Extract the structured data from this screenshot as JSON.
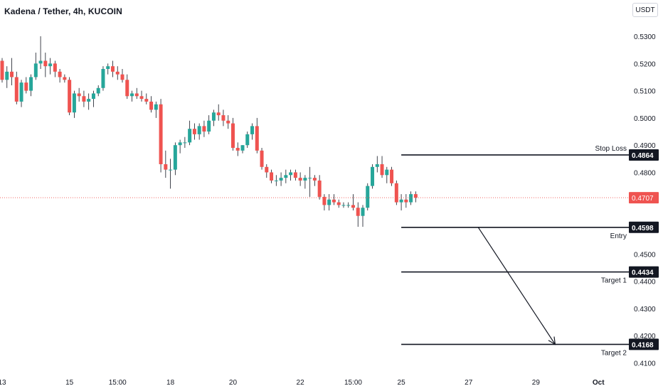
{
  "header": {
    "symbol_title": "Kadena / Tether, 4h, KUCOIN",
    "currency_button": "USDT"
  },
  "colors": {
    "bull": "#26a69a",
    "bear": "#ef5350",
    "price_line": "#ef5350",
    "level_line": "#131722",
    "axis_text": "#131722"
  },
  "chart_data": {
    "type": "candlestick",
    "title": "Kadena / Tether, 4h, KUCOIN",
    "ylim": [
      0.4075,
      0.5355
    ],
    "y_ticks": [
      0.53,
      0.52,
      0.51,
      0.5,
      0.49,
      0.48,
      0.45,
      0.44,
      0.43,
      0.42,
      0.41
    ],
    "y_tick_labels": [
      "0.5300",
      "0.5200",
      "0.5100",
      "0.5000",
      "0.4900",
      "0.4800",
      "0.4500",
      "0.4400",
      "0.4300",
      "0.4200",
      "0.4100"
    ],
    "x_labels": [
      "13",
      "15",
      "15:00",
      "18",
      "20",
      "22",
      "15:00",
      "25",
      "27",
      "29",
      "Oct"
    ],
    "x_label_candle_index": [
      0,
      14,
      24,
      35,
      48,
      62,
      73,
      83,
      97,
      111,
      124
    ],
    "current_price": {
      "value": 0.4707,
      "label": "0.4707"
    },
    "levels": [
      {
        "name": "Stop Loss",
        "value": 0.4864,
        "label": "0.4864",
        "start_candle": 83
      },
      {
        "name": "Entry",
        "value": 0.4598,
        "label": "0.4598",
        "start_candle": 83
      },
      {
        "name": "Target 1",
        "value": 0.4434,
        "label": "0.4434",
        "start_candle": 83
      },
      {
        "name": "Target 2",
        "value": 0.4168,
        "label": "0.4168",
        "start_candle": 83
      }
    ],
    "arrow": {
      "from": {
        "candle": 99,
        "value": 0.4598
      },
      "to": {
        "candle": 115,
        "value": 0.4168
      }
    },
    "candles": [
      [
        0.521,
        0.522,
        0.513,
        0.514
      ],
      [
        0.514,
        0.519,
        0.511,
        0.517
      ],
      [
        0.517,
        0.522,
        0.512,
        0.515
      ],
      [
        0.515,
        0.517,
        0.505,
        0.506
      ],
      [
        0.506,
        0.514,
        0.504,
        0.513
      ],
      [
        0.513,
        0.515,
        0.509,
        0.51
      ],
      [
        0.51,
        0.516,
        0.508,
        0.515
      ],
      [
        0.515,
        0.524,
        0.514,
        0.52
      ],
      [
        0.52,
        0.53,
        0.518,
        0.521
      ],
      [
        0.521,
        0.524,
        0.515,
        0.519
      ],
      [
        0.519,
        0.522,
        0.516,
        0.52
      ],
      [
        0.52,
        0.521,
        0.515,
        0.517
      ],
      [
        0.517,
        0.518,
        0.513,
        0.515
      ],
      [
        0.515,
        0.516,
        0.513,
        0.514
      ],
      [
        0.514,
        0.515,
        0.501,
        0.502
      ],
      [
        0.502,
        0.51,
        0.5,
        0.509
      ],
      [
        0.509,
        0.511,
        0.506,
        0.508
      ],
      [
        0.508,
        0.51,
        0.504,
        0.506
      ],
      [
        0.506,
        0.509,
        0.503,
        0.507
      ],
      [
        0.507,
        0.51,
        0.504,
        0.509
      ],
      [
        0.509,
        0.512,
        0.508,
        0.511
      ],
      [
        0.511,
        0.519,
        0.51,
        0.518
      ],
      [
        0.518,
        0.52,
        0.516,
        0.519
      ],
      [
        0.519,
        0.521,
        0.515,
        0.517
      ],
      [
        0.517,
        0.519,
        0.514,
        0.516
      ],
      [
        0.516,
        0.518,
        0.513,
        0.514
      ],
      [
        0.514,
        0.516,
        0.507,
        0.508
      ],
      [
        0.508,
        0.51,
        0.506,
        0.509
      ],
      [
        0.509,
        0.511,
        0.507,
        0.508
      ],
      [
        0.508,
        0.51,
        0.506,
        0.507
      ],
      [
        0.507,
        0.509,
        0.505,
        0.506
      ],
      [
        0.506,
        0.508,
        0.502,
        0.503
      ],
      [
        0.503,
        0.506,
        0.5,
        0.505
      ],
      [
        0.505,
        0.507,
        0.48,
        0.483
      ],
      [
        0.483,
        0.488,
        0.478,
        0.481
      ],
      [
        0.481,
        0.485,
        0.474,
        0.481
      ],
      [
        0.481,
        0.491,
        0.479,
        0.49
      ],
      [
        0.49,
        0.492,
        0.487,
        0.491
      ],
      [
        0.491,
        0.493,
        0.489,
        0.491
      ],
      [
        0.491,
        0.499,
        0.49,
        0.496
      ],
      [
        0.496,
        0.498,
        0.492,
        0.494
      ],
      [
        0.494,
        0.498,
        0.492,
        0.497
      ],
      [
        0.497,
        0.499,
        0.493,
        0.495
      ],
      [
        0.495,
        0.501,
        0.494,
        0.499
      ],
      [
        0.499,
        0.503,
        0.497,
        0.502
      ],
      [
        0.502,
        0.505,
        0.499,
        0.501
      ],
      [
        0.501,
        0.503,
        0.497,
        0.499
      ],
      [
        0.499,
        0.501,
        0.496,
        0.498
      ],
      [
        0.498,
        0.5,
        0.488,
        0.489
      ],
      [
        0.489,
        0.491,
        0.486,
        0.488
      ],
      [
        0.488,
        0.49,
        0.487,
        0.49
      ],
      [
        0.49,
        0.495,
        0.489,
        0.494
      ],
      [
        0.494,
        0.498,
        0.492,
        0.497
      ],
      [
        0.497,
        0.5,
        0.487,
        0.488
      ],
      [
        0.488,
        0.489,
        0.481,
        0.482
      ],
      [
        0.482,
        0.483,
        0.478,
        0.48
      ],
      [
        0.48,
        0.481,
        0.476,
        0.477
      ],
      [
        0.477,
        0.479,
        0.475,
        0.477
      ],
      [
        0.477,
        0.48,
        0.475,
        0.478
      ],
      [
        0.478,
        0.481,
        0.476,
        0.479
      ],
      [
        0.479,
        0.481,
        0.477,
        0.48
      ],
      [
        0.48,
        0.481,
        0.477,
        0.478
      ],
      [
        0.478,
        0.48,
        0.475,
        0.477
      ],
      [
        0.477,
        0.479,
        0.474,
        0.478
      ],
      [
        0.478,
        0.482,
        0.471,
        0.478
      ],
      [
        0.478,
        0.479,
        0.475,
        0.477
      ],
      [
        0.477,
        0.479,
        0.47,
        0.471
      ],
      [
        0.471,
        0.472,
        0.466,
        0.468
      ],
      [
        0.468,
        0.472,
        0.466,
        0.47
      ],
      [
        0.47,
        0.472,
        0.468,
        0.469
      ],
      [
        0.469,
        0.47,
        0.467,
        0.468
      ],
      [
        0.468,
        0.469,
        0.467,
        0.468
      ],
      [
        0.468,
        0.469,
        0.467,
        0.468
      ],
      [
        0.468,
        0.472,
        0.466,
        0.467
      ],
      [
        0.467,
        0.469,
        0.46,
        0.464
      ],
      [
        0.464,
        0.468,
        0.46,
        0.467
      ],
      [
        0.467,
        0.476,
        0.466,
        0.475
      ],
      [
        0.475,
        0.483,
        0.474,
        0.482
      ],
      [
        0.482,
        0.486,
        0.48,
        0.483
      ],
      [
        0.483,
        0.486,
        0.478,
        0.479
      ],
      [
        0.479,
        0.482,
        0.476,
        0.481
      ],
      [
        0.481,
        0.482,
        0.475,
        0.476
      ],
      [
        0.476,
        0.477,
        0.468,
        0.469
      ],
      [
        0.469,
        0.472,
        0.466,
        0.47
      ],
      [
        0.47,
        0.472,
        0.467,
        0.469
      ],
      [
        0.469,
        0.473,
        0.468,
        0.472
      ],
      [
        0.472,
        0.473,
        0.469,
        0.4707
      ]
    ]
  }
}
